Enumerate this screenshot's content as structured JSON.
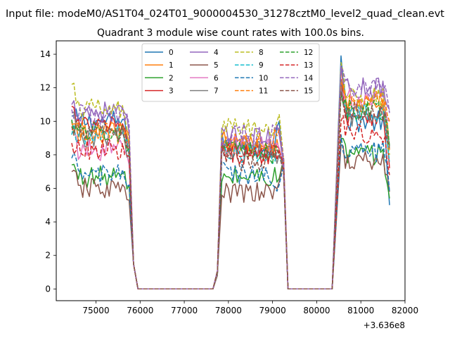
{
  "chart_data": {
    "type": "line",
    "suptitle": "Input file: modeM0/AS1T04_024T01_9000004530_31278cztM0_level2_quad_clean.evt",
    "title": "Quadrant 3 module wise count rates with 100.0s bins.",
    "xlabel": "",
    "ylabel": "",
    "x_offset_label": "+3.636e8",
    "xlim": [
      74100,
      82000
    ],
    "ylim": [
      -0.7,
      14.8
    ],
    "xticks": [
      75000,
      76000,
      77000,
      78000,
      79000,
      80000,
      81000,
      82000
    ],
    "xtick_labels": [
      "75000",
      "76000",
      "77000",
      "78000",
      "79000",
      "80000",
      "81000",
      "82000"
    ],
    "yticks": [
      0,
      2,
      4,
      6,
      8,
      10,
      12,
      14
    ],
    "ytick_labels": [
      "0",
      "2",
      "4",
      "6",
      "8",
      "10",
      "12",
      "14"
    ],
    "grid": false,
    "legend_position": "top-center",
    "legend_columns": 4,
    "segments": [
      {
        "start": 74450,
        "end": 75750
      },
      {
        "start": 77850,
        "end": 79150
      },
      {
        "start": 80550,
        "end": 81650
      }
    ],
    "gap_x": [
      75850,
      75950,
      76050,
      77650,
      77750,
      79250,
      79350,
      79450,
      80250,
      80350
    ],
    "gap_y": [
      1.5,
      0,
      0,
      0,
      0.8,
      7,
      0,
      0,
      0,
      0
    ],
    "series": [
      {
        "name": "0",
        "color": "#1f77b4",
        "dash": false,
        "means": [
          10.0,
          8.5,
          10.0
        ],
        "startv": [
          10.3,
          9.4,
          13.9
        ],
        "endv": [
          8.6,
          10.0,
          5.0
        ]
      },
      {
        "name": "1",
        "color": "#ff7f0e",
        "dash": false,
        "means": [
          9.3,
          8.6,
          11.0
        ],
        "startv": [
          9.8,
          9.0,
          13.3
        ],
        "endv": [
          8.6,
          8.2,
          8.3
        ]
      },
      {
        "name": "2",
        "color": "#2ca02c",
        "dash": false,
        "means": [
          6.7,
          6.7,
          8.0
        ],
        "startv": [
          7.4,
          6.4,
          9.0
        ],
        "endv": [
          6.2,
          6.6,
          5.4
        ]
      },
      {
        "name": "3",
        "color": "#d62728",
        "dash": false,
        "means": [
          9.7,
          8.1,
          10.4
        ],
        "startv": [
          10.9,
          8.3,
          12.5
        ],
        "endv": [
          8.0,
          8.4,
          7.2
        ]
      },
      {
        "name": "4",
        "color": "#9467bd",
        "dash": false,
        "means": [
          10.6,
          9.0,
          12.0
        ],
        "startv": [
          11.0,
          9.6,
          13.3
        ],
        "endv": [
          9.3,
          9.2,
          10.7
        ]
      },
      {
        "name": "5",
        "color": "#8c564b",
        "dash": false,
        "means": [
          6.0,
          5.7,
          7.6
        ],
        "startv": [
          7.0,
          5.6,
          8.6
        ],
        "endv": [
          5.3,
          6.4,
          5.8
        ]
      },
      {
        "name": "6",
        "color": "#e377c2",
        "dash": false,
        "means": [
          8.3,
          8.6,
          11.3
        ],
        "startv": [
          9.5,
          8.9,
          12.0
        ],
        "endv": [
          7.4,
          8.4,
          10.0
        ]
      },
      {
        "name": "7",
        "color": "#7f7f7f",
        "dash": false,
        "means": [
          9.1,
          8.3,
          10.3
        ],
        "startv": [
          10.5,
          8.6,
          12.4
        ],
        "endv": [
          8.0,
          8.0,
          8.5
        ]
      },
      {
        "name": "8",
        "color": "#bcbd22",
        "dash": true,
        "means": [
          10.7,
          9.6,
          11.4
        ],
        "startv": [
          12.2,
          9.4,
          13.5
        ],
        "endv": [
          9.0,
          10.4,
          8.0
        ]
      },
      {
        "name": "9",
        "color": "#17becf",
        "dash": true,
        "means": [
          9.2,
          8.0,
          10.4
        ],
        "startv": [
          9.2,
          8.5,
          11.8
        ],
        "endv": [
          8.0,
          8.0,
          7.6
        ]
      },
      {
        "name": "10",
        "color": "#1f77b4",
        "dash": true,
        "means": [
          6.8,
          6.8,
          8.2
        ],
        "startv": [
          7.8,
          7.6,
          9.2
        ],
        "endv": [
          6.2,
          6.2,
          5.8
        ]
      },
      {
        "name": "11",
        "color": "#ff7f0e",
        "dash": true,
        "means": [
          9.3,
          8.7,
          11.3
        ],
        "startv": [
          10.0,
          8.7,
          12.3
        ],
        "endv": [
          9.2,
          9.5,
          10.0
        ]
      },
      {
        "name": "12",
        "color": "#2ca02c",
        "dash": true,
        "means": [
          9.4,
          8.1,
          10.7
        ],
        "startv": [
          10.1,
          8.7,
          11.6
        ],
        "endv": [
          8.5,
          8.0,
          8.5
        ]
      },
      {
        "name": "13",
        "color": "#d62728",
        "dash": true,
        "means": [
          8.3,
          8.0,
          9.3
        ],
        "startv": [
          8.7,
          8.7,
          10.0
        ],
        "endv": [
          7.9,
          8.3,
          6.8
        ]
      },
      {
        "name": "14",
        "color": "#9467bd",
        "dash": true,
        "means": [
          10.4,
          9.2,
          12.0
        ],
        "startv": [
          10.7,
          9.0,
          13.3
        ],
        "endv": [
          9.8,
          9.6,
          10.5
        ]
      },
      {
        "name": "15",
        "color": "#8c564b",
        "dash": true,
        "means": [
          9.3,
          7.6,
          10.5
        ],
        "startv": [
          9.7,
          8.2,
          11.8
        ],
        "endv": [
          8.6,
          8.0,
          8.4
        ]
      }
    ]
  }
}
